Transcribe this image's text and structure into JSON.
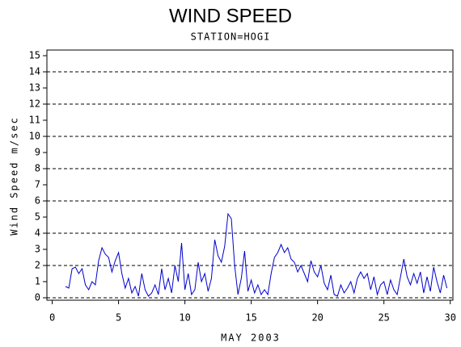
{
  "chart_data": {
    "type": "line",
    "title": "WIND SPEED",
    "subtitle": "STATION=HOGI",
    "ylabel": "Wind Speed m/sec",
    "xlabel": "MAY 2003",
    "xlim": [
      -0.4,
      30.2
    ],
    "ylim": [
      -0.15,
      15.35
    ],
    "xticks": [
      0,
      5,
      10,
      15,
      20,
      25,
      30
    ],
    "yticks": [
      0,
      1,
      2,
      3,
      4,
      5,
      6,
      7,
      8,
      9,
      10,
      11,
      12,
      13,
      14,
      15
    ],
    "ygrid": [
      0,
      2,
      4,
      6,
      8,
      10,
      12,
      14
    ],
    "x": [
      1.0,
      1.25,
      1.5,
      1.75,
      2.0,
      2.25,
      2.5,
      2.75,
      3.0,
      3.25,
      3.5,
      3.75,
      4.0,
      4.25,
      4.5,
      4.75,
      5.0,
      5.25,
      5.5,
      5.75,
      6.0,
      6.25,
      6.5,
      6.75,
      7.0,
      7.25,
      7.5,
      7.75,
      8.0,
      8.25,
      8.5,
      8.75,
      9.0,
      9.25,
      9.5,
      9.75,
      10.0,
      10.25,
      10.5,
      10.75,
      11.0,
      11.25,
      11.5,
      11.75,
      12.0,
      12.25,
      12.5,
      12.75,
      13.0,
      13.25,
      13.5,
      13.75,
      14.0,
      14.25,
      14.5,
      14.75,
      15.0,
      15.25,
      15.5,
      15.75,
      16.0,
      16.25,
      16.5,
      16.75,
      17.0,
      17.25,
      17.5,
      17.75,
      18.0,
      18.25,
      18.5,
      18.75,
      19.0,
      19.25,
      19.5,
      19.75,
      20.0,
      20.25,
      20.5,
      20.75,
      21.0,
      21.25,
      21.5,
      21.75,
      22.0,
      22.25,
      22.5,
      22.75,
      23.0,
      23.25,
      23.5,
      23.75,
      24.0,
      24.25,
      24.5,
      24.75,
      25.0,
      25.25,
      25.5,
      25.75,
      26.0,
      26.25,
      26.5,
      26.75,
      27.0,
      27.25,
      27.5,
      27.75,
      28.0,
      28.25,
      28.5,
      28.75,
      29.0,
      29.25,
      29.5,
      29.75
    ],
    "series": [
      {
        "name": "Wind Speed",
        "color": "#0000cc",
        "values": [
          0.7,
          0.6,
          1.8,
          1.9,
          1.5,
          1.8,
          0.8,
          0.5,
          1.0,
          0.8,
          2.3,
          3.1,
          2.7,
          2.5,
          1.6,
          2.3,
          2.8,
          1.5,
          0.6,
          1.2,
          0.3,
          0.7,
          0.1,
          1.5,
          0.5,
          0.1,
          0.3,
          0.8,
          0.2,
          1.8,
          0.5,
          1.2,
          0.3,
          2.0,
          1.0,
          3.4,
          0.5,
          1.5,
          0.2,
          0.5,
          2.2,
          1.0,
          1.5,
          0.4,
          1.2,
          3.6,
          2.6,
          2.2,
          3.2,
          5.2,
          4.9,
          2.0,
          0.2,
          1.2,
          2.9,
          0.4,
          1.1,
          0.3,
          0.8,
          0.2,
          0.5,
          0.2,
          1.5,
          2.5,
          2.8,
          3.3,
          2.8,
          3.1,
          2.4,
          2.2,
          1.6,
          2.0,
          1.5,
          1.0,
          2.3,
          1.6,
          1.3,
          2.0,
          0.9,
          0.5,
          1.4,
          0.2,
          0.1,
          0.8,
          0.3,
          0.6,
          1.0,
          0.3,
          1.2,
          1.6,
          1.2,
          1.5,
          0.5,
          1.3,
          0.2,
          0.8,
          1.0,
          0.2,
          1.1,
          0.5,
          0.2,
          1.3,
          2.4,
          1.3,
          0.8,
          1.5,
          0.9,
          1.6,
          0.3,
          1.3,
          0.4,
          1.9,
          1.0,
          0.3,
          1.4,
          0.6
        ]
      }
    ]
  }
}
